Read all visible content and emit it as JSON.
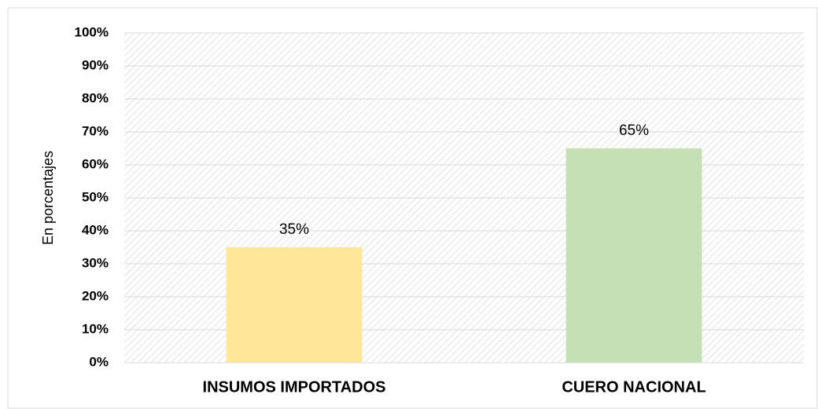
{
  "chart_data": {
    "type": "bar",
    "y_axis_label": "En porcentajes",
    "categories": [
      "INSUMOS IMPORTADOS",
      "CUERO NACIONAL"
    ],
    "values": [
      35,
      65
    ],
    "value_labels": [
      "35%",
      "65%"
    ],
    "colors": [
      "#ffe699",
      "#c5e0b4"
    ],
    "ylim": [
      0,
      100
    ],
    "yticks": [
      {
        "value": 0,
        "label": "0%"
      },
      {
        "value": 10,
        "label": "10%"
      },
      {
        "value": 20,
        "label": "20%"
      },
      {
        "value": 30,
        "label": "30%"
      },
      {
        "value": 40,
        "label": "40%"
      },
      {
        "value": 50,
        "label": "50%"
      },
      {
        "value": 60,
        "label": "60%"
      },
      {
        "value": 70,
        "label": "70%"
      },
      {
        "value": 80,
        "label": "80%"
      },
      {
        "value": 90,
        "label": "90%"
      },
      {
        "value": 100,
        "label": "100%"
      }
    ],
    "grid": true
  }
}
